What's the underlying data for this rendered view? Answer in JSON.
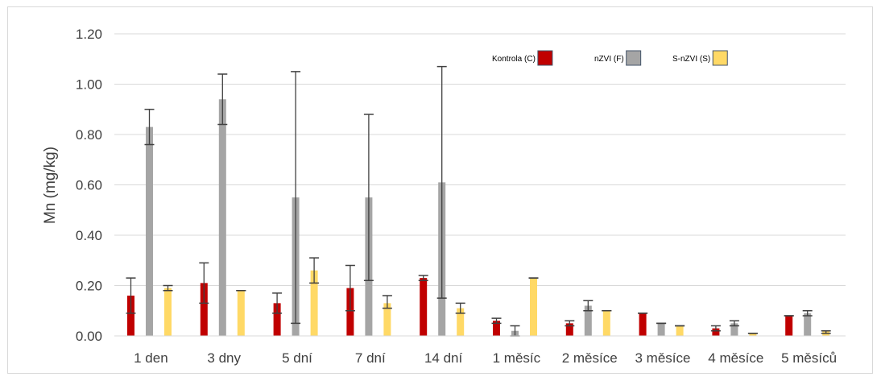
{
  "chart_data": {
    "type": "bar",
    "title": "",
    "xlabel": "",
    "ylabel": "Mn (mg/kg)",
    "ylim": [
      0,
      1.2
    ],
    "yticks": [
      "0.00",
      "0.20",
      "0.40",
      "0.60",
      "0.80",
      "1.00",
      "1.20"
    ],
    "grid": true,
    "legend_position": "top-right",
    "categories": [
      "1 den",
      "3 dny",
      "5 dní",
      "7 dní",
      "14 dní",
      "1 měsíc",
      "2 měsíce",
      "3 měsíce",
      "4 měsíce",
      "5 měsíců"
    ],
    "series": [
      {
        "name": "Kontrola (C)",
        "color": "#c00000",
        "values": [
          0.16,
          0.21,
          0.13,
          0.19,
          0.23,
          0.06,
          0.05,
          0.09,
          0.03,
          0.08
        ],
        "error_low": [
          0.09,
          0.13,
          0.09,
          0.1,
          0.22,
          0.05,
          0.04,
          0.09,
          0.02,
          0.08
        ],
        "error_high": [
          0.23,
          0.29,
          0.17,
          0.28,
          0.24,
          0.07,
          0.06,
          0.09,
          0.04,
          0.08
        ]
      },
      {
        "name": "nZVI (F)",
        "color": "#a5a5a5",
        "values": [
          0.83,
          0.94,
          0.55,
          0.55,
          0.61,
          0.02,
          0.12,
          0.05,
          0.05,
          0.09
        ],
        "error_low": [
          0.76,
          0.84,
          0.05,
          0.22,
          0.15,
          0.0,
          0.1,
          0.05,
          0.04,
          0.08
        ],
        "error_high": [
          0.9,
          1.04,
          1.05,
          0.88,
          1.07,
          0.04,
          0.14,
          0.05,
          0.06,
          0.1
        ]
      },
      {
        "name": "S-nZVI (S)",
        "color": "#ffd966",
        "values": [
          0.19,
          0.18,
          0.26,
          0.13,
          0.11,
          0.23,
          0.1,
          0.04,
          0.01,
          0.02
        ],
        "error_low": [
          0.18,
          0.18,
          0.21,
          0.11,
          0.09,
          0.23,
          0.1,
          0.04,
          0.01,
          0.01
        ],
        "error_high": [
          0.2,
          0.18,
          0.31,
          0.16,
          0.13,
          0.23,
          0.1,
          0.04,
          0.01,
          0.02
        ]
      }
    ]
  }
}
